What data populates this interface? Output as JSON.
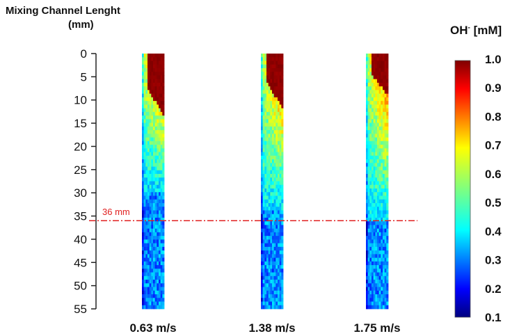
{
  "chart_data": {
    "type": "heatmap",
    "title": "",
    "ylabel": {
      "line1": "Mixing Channel Lenght",
      "line2": "(mm)"
    },
    "yticks": [
      0,
      5,
      10,
      15,
      20,
      25,
      30,
      35,
      40,
      45,
      50,
      55
    ],
    "ylim": [
      0,
      55
    ],
    "y_direction": "downward",
    "columns": [
      {
        "label": "0.63 m/s",
        "high_zone_end_mm": 14,
        "gradient_end_mm": 30
      },
      {
        "label": "1.38 m/s",
        "high_zone_end_mm": 12,
        "gradient_end_mm": 34
      },
      {
        "label": "1.75 m/s",
        "high_zone_end_mm": 9,
        "gradient_end_mm": 36
      }
    ],
    "reference_line": {
      "y": 36,
      "label": "36 mm",
      "color": "#e02020",
      "style": "dash-dot"
    },
    "colorbar": {
      "title_base": "OH",
      "title_sup": "-",
      "title_unit": "[mM]",
      "ticks": [
        "1.0",
        "0.9",
        "0.8",
        "0.7",
        "0.6",
        "0.5",
        "0.4",
        "0.3",
        "0.2",
        "0.1"
      ],
      "range": [
        0.1,
        1.0
      ],
      "colormap": "jet"
    }
  }
}
